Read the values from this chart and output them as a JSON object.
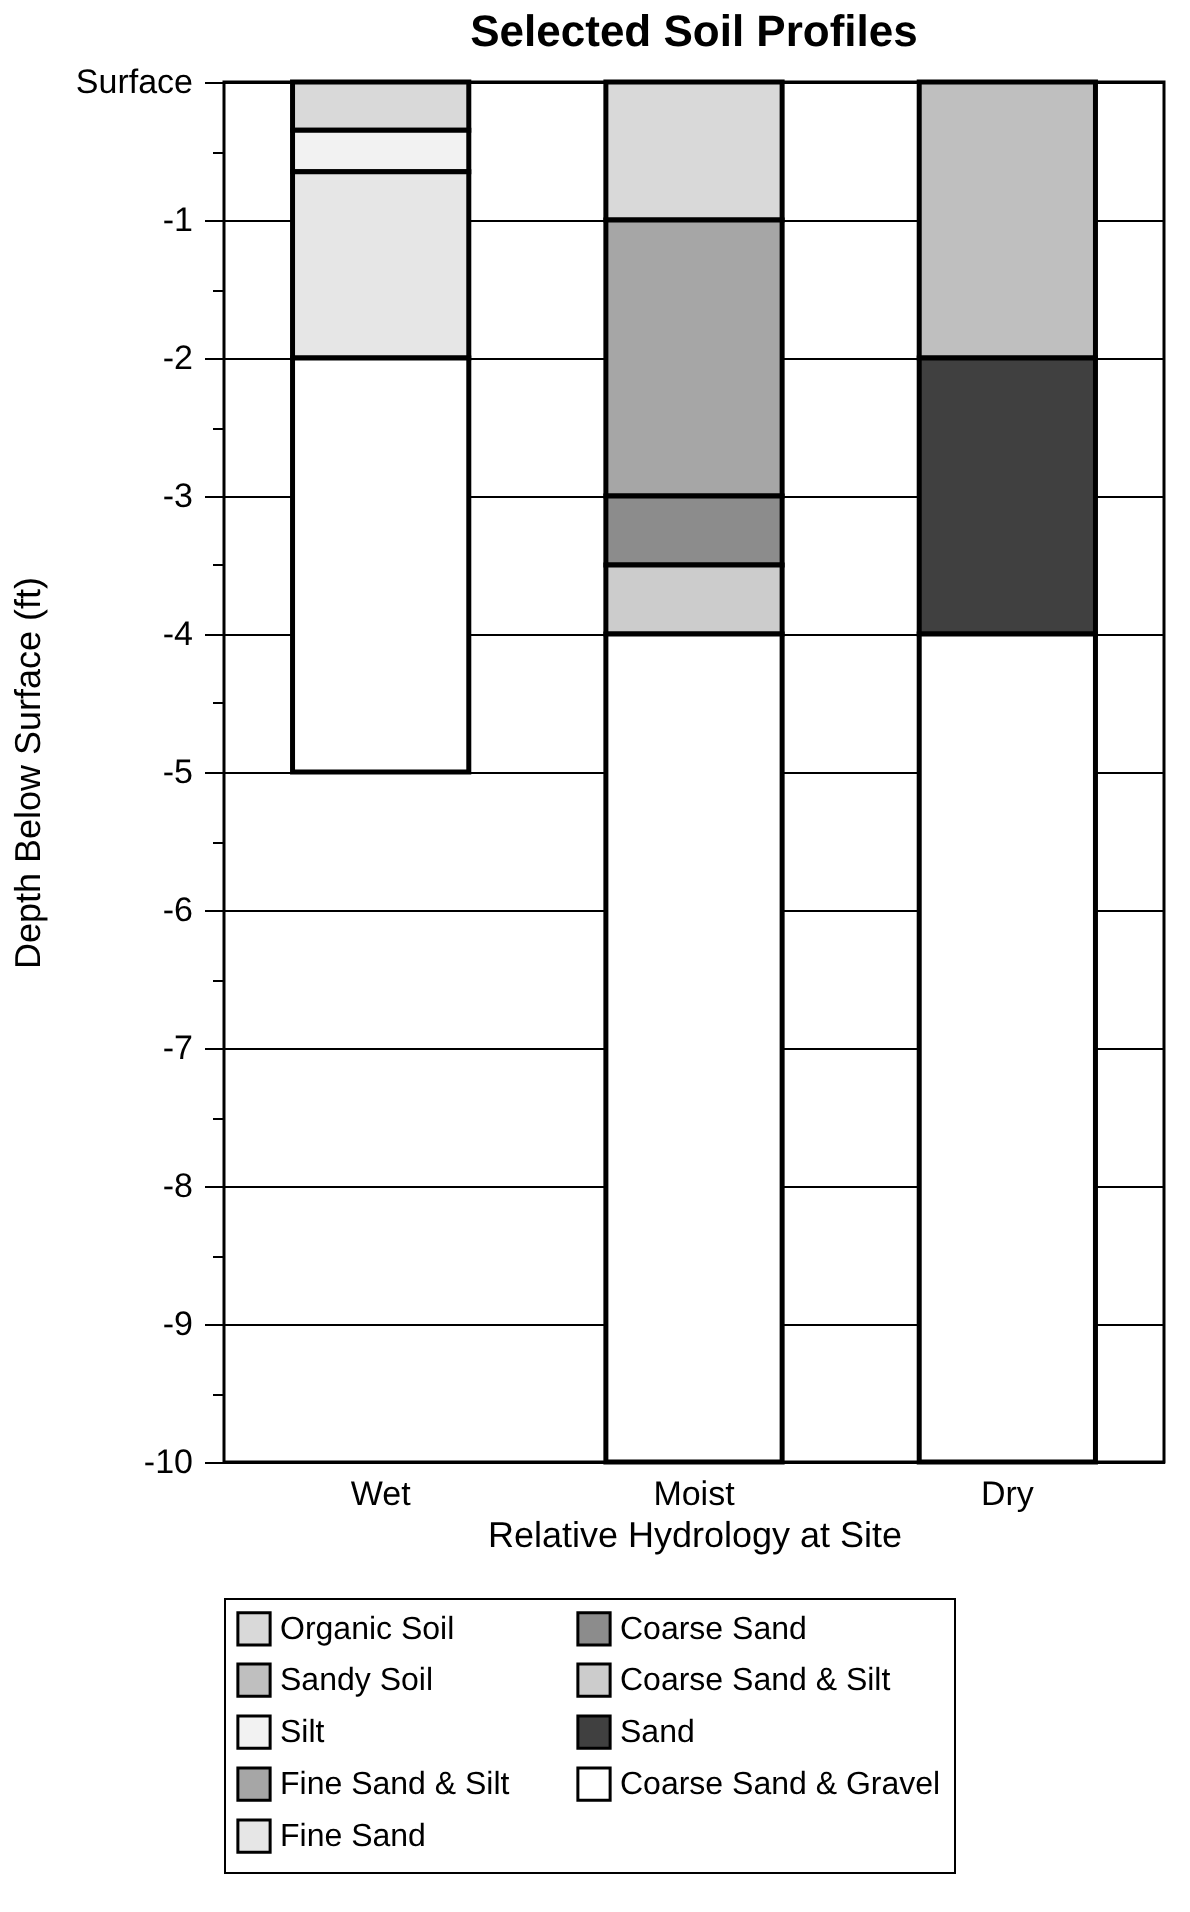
{
  "chart_data": {
    "type": "bar",
    "stacked": true,
    "title": "Selected Soil Profiles",
    "xlabel": "Relative Hydrology at Site",
    "ylabel": "Depth Below Surface (ft)",
    "categories": [
      "Wet",
      "Moist",
      "Dry"
    ],
    "ylim": [
      -10,
      0
    ],
    "yticks": [
      {
        "value": 0,
        "label": "Surface"
      },
      {
        "value": -0.5,
        "label": null
      },
      -1,
      {
        "value": -1.5,
        "label": null
      },
      -2,
      {
        "value": -2.5,
        "label": null
      },
      -3,
      {
        "value": -3.5,
        "label": null
      },
      -4,
      {
        "value": -4.5,
        "label": null
      },
      -5,
      {
        "value": -5.5,
        "label": null
      },
      -6,
      {
        "value": -6.5,
        "label": null
      },
      -7,
      {
        "value": -7.5,
        "label": null
      },
      -8,
      {
        "value": -8.5,
        "label": null
      },
      -9,
      {
        "value": -9.5,
        "label": null
      },
      -10
    ],
    "grid": "y",
    "legend": "bottom",
    "series": [
      {
        "name": "Organic Soil",
        "color": "#d9d9d9",
        "values": [
          -0.35,
          -1,
          null
        ]
      },
      {
        "name": "Sandy Soil",
        "color": "#bfbfbf",
        "values": [
          null,
          null,
          -2
        ]
      },
      {
        "name": "Silt",
        "color": "#f2f2f2",
        "values": [
          -0.3,
          null,
          null
        ]
      },
      {
        "name": "Fine Sand & Silt",
        "color": "#a6a6a6",
        "values": [
          null,
          -2,
          null
        ]
      },
      {
        "name": "Fine Sand",
        "color": "#e6e6e6",
        "values": [
          -1.35,
          null,
          null
        ]
      },
      {
        "name": "Coarse Sand",
        "color": "#8c8c8c",
        "values": [
          null,
          -0.5,
          null
        ]
      },
      {
        "name": "Coarse Sand & Silt",
        "color": "#cccccc",
        "values": [
          null,
          -0.5,
          null
        ]
      },
      {
        "name": "Sand",
        "color": "#404040",
        "values": [
          null,
          null,
          -2
        ]
      },
      {
        "name": "Coarse Sand & Gravel",
        "color": "#ffffff",
        "values": [
          -3,
          -6,
          -6
        ]
      }
    ]
  }
}
